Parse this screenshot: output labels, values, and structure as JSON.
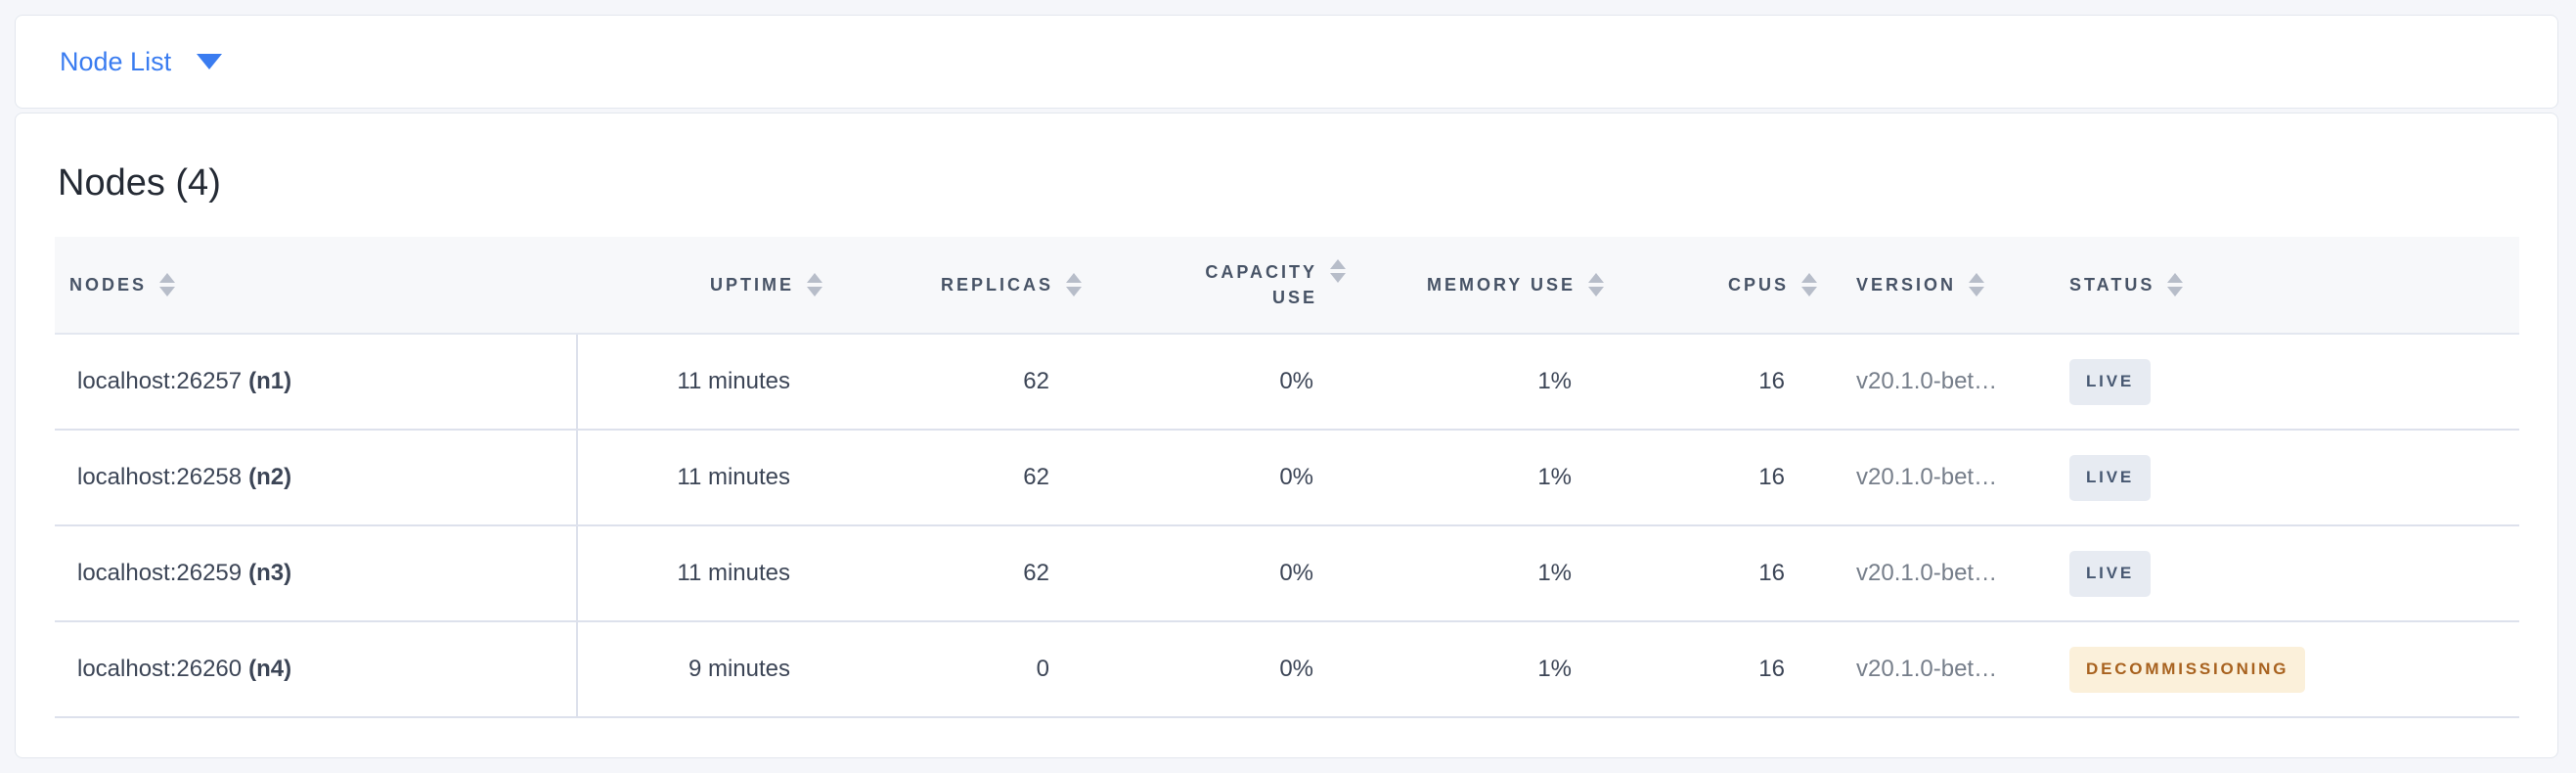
{
  "view_selector": {
    "label": "Node List"
  },
  "summary": {
    "title": "Nodes (4)"
  },
  "table": {
    "columns": [
      {
        "key": "nodes",
        "label": "NODES",
        "align": "left"
      },
      {
        "key": "uptime",
        "label": "UPTIME",
        "align": "right"
      },
      {
        "key": "replicas",
        "label": "REPLICAS",
        "align": "right"
      },
      {
        "key": "capacity_use",
        "label": "CAPACITY USE",
        "align": "right"
      },
      {
        "key": "memory_use",
        "label": "MEMORY USE",
        "align": "right"
      },
      {
        "key": "cpus",
        "label": "CPUS",
        "align": "right"
      },
      {
        "key": "version",
        "label": "VERSION",
        "align": "left"
      },
      {
        "key": "status",
        "label": "STATUS",
        "align": "left"
      }
    ],
    "rows": [
      {
        "address": "localhost:26257",
        "node_id": "(n1)",
        "uptime": "11 minutes",
        "replicas": "62",
        "capacity_use": "0%",
        "memory_use": "1%",
        "cpus": "16",
        "version": "v20.1.0-bet…",
        "status": "LIVE"
      },
      {
        "address": "localhost:26258",
        "node_id": "(n2)",
        "uptime": "11 minutes",
        "replicas": "62",
        "capacity_use": "0%",
        "memory_use": "1%",
        "cpus": "16",
        "version": "v20.1.0-bet…",
        "status": "LIVE"
      },
      {
        "address": "localhost:26259",
        "node_id": "(n3)",
        "uptime": "11 minutes",
        "replicas": "62",
        "capacity_use": "0%",
        "memory_use": "1%",
        "cpus": "16",
        "version": "v20.1.0-bet…",
        "status": "LIVE"
      },
      {
        "address": "localhost:26260",
        "node_id": "(n4)",
        "uptime": "9 minutes",
        "replicas": "0",
        "capacity_use": "0%",
        "memory_use": "1%",
        "cpus": "16",
        "version": "v20.1.0-bet…",
        "status": "DECOMMISSIONING"
      }
    ],
    "status_styles": {
      "LIVE": {
        "bg": "#e7ebf2",
        "color": "#475872"
      },
      "DECOMMISSIONING": {
        "bg": "#fbf0da",
        "color": "#a8621f"
      }
    }
  },
  "colors": {
    "accent_blue": "#3a7cf0",
    "page_bg": "#f5f6fa",
    "header_text": "#475366",
    "body_text": "#3c4556",
    "row_border": "#dde1ec"
  }
}
